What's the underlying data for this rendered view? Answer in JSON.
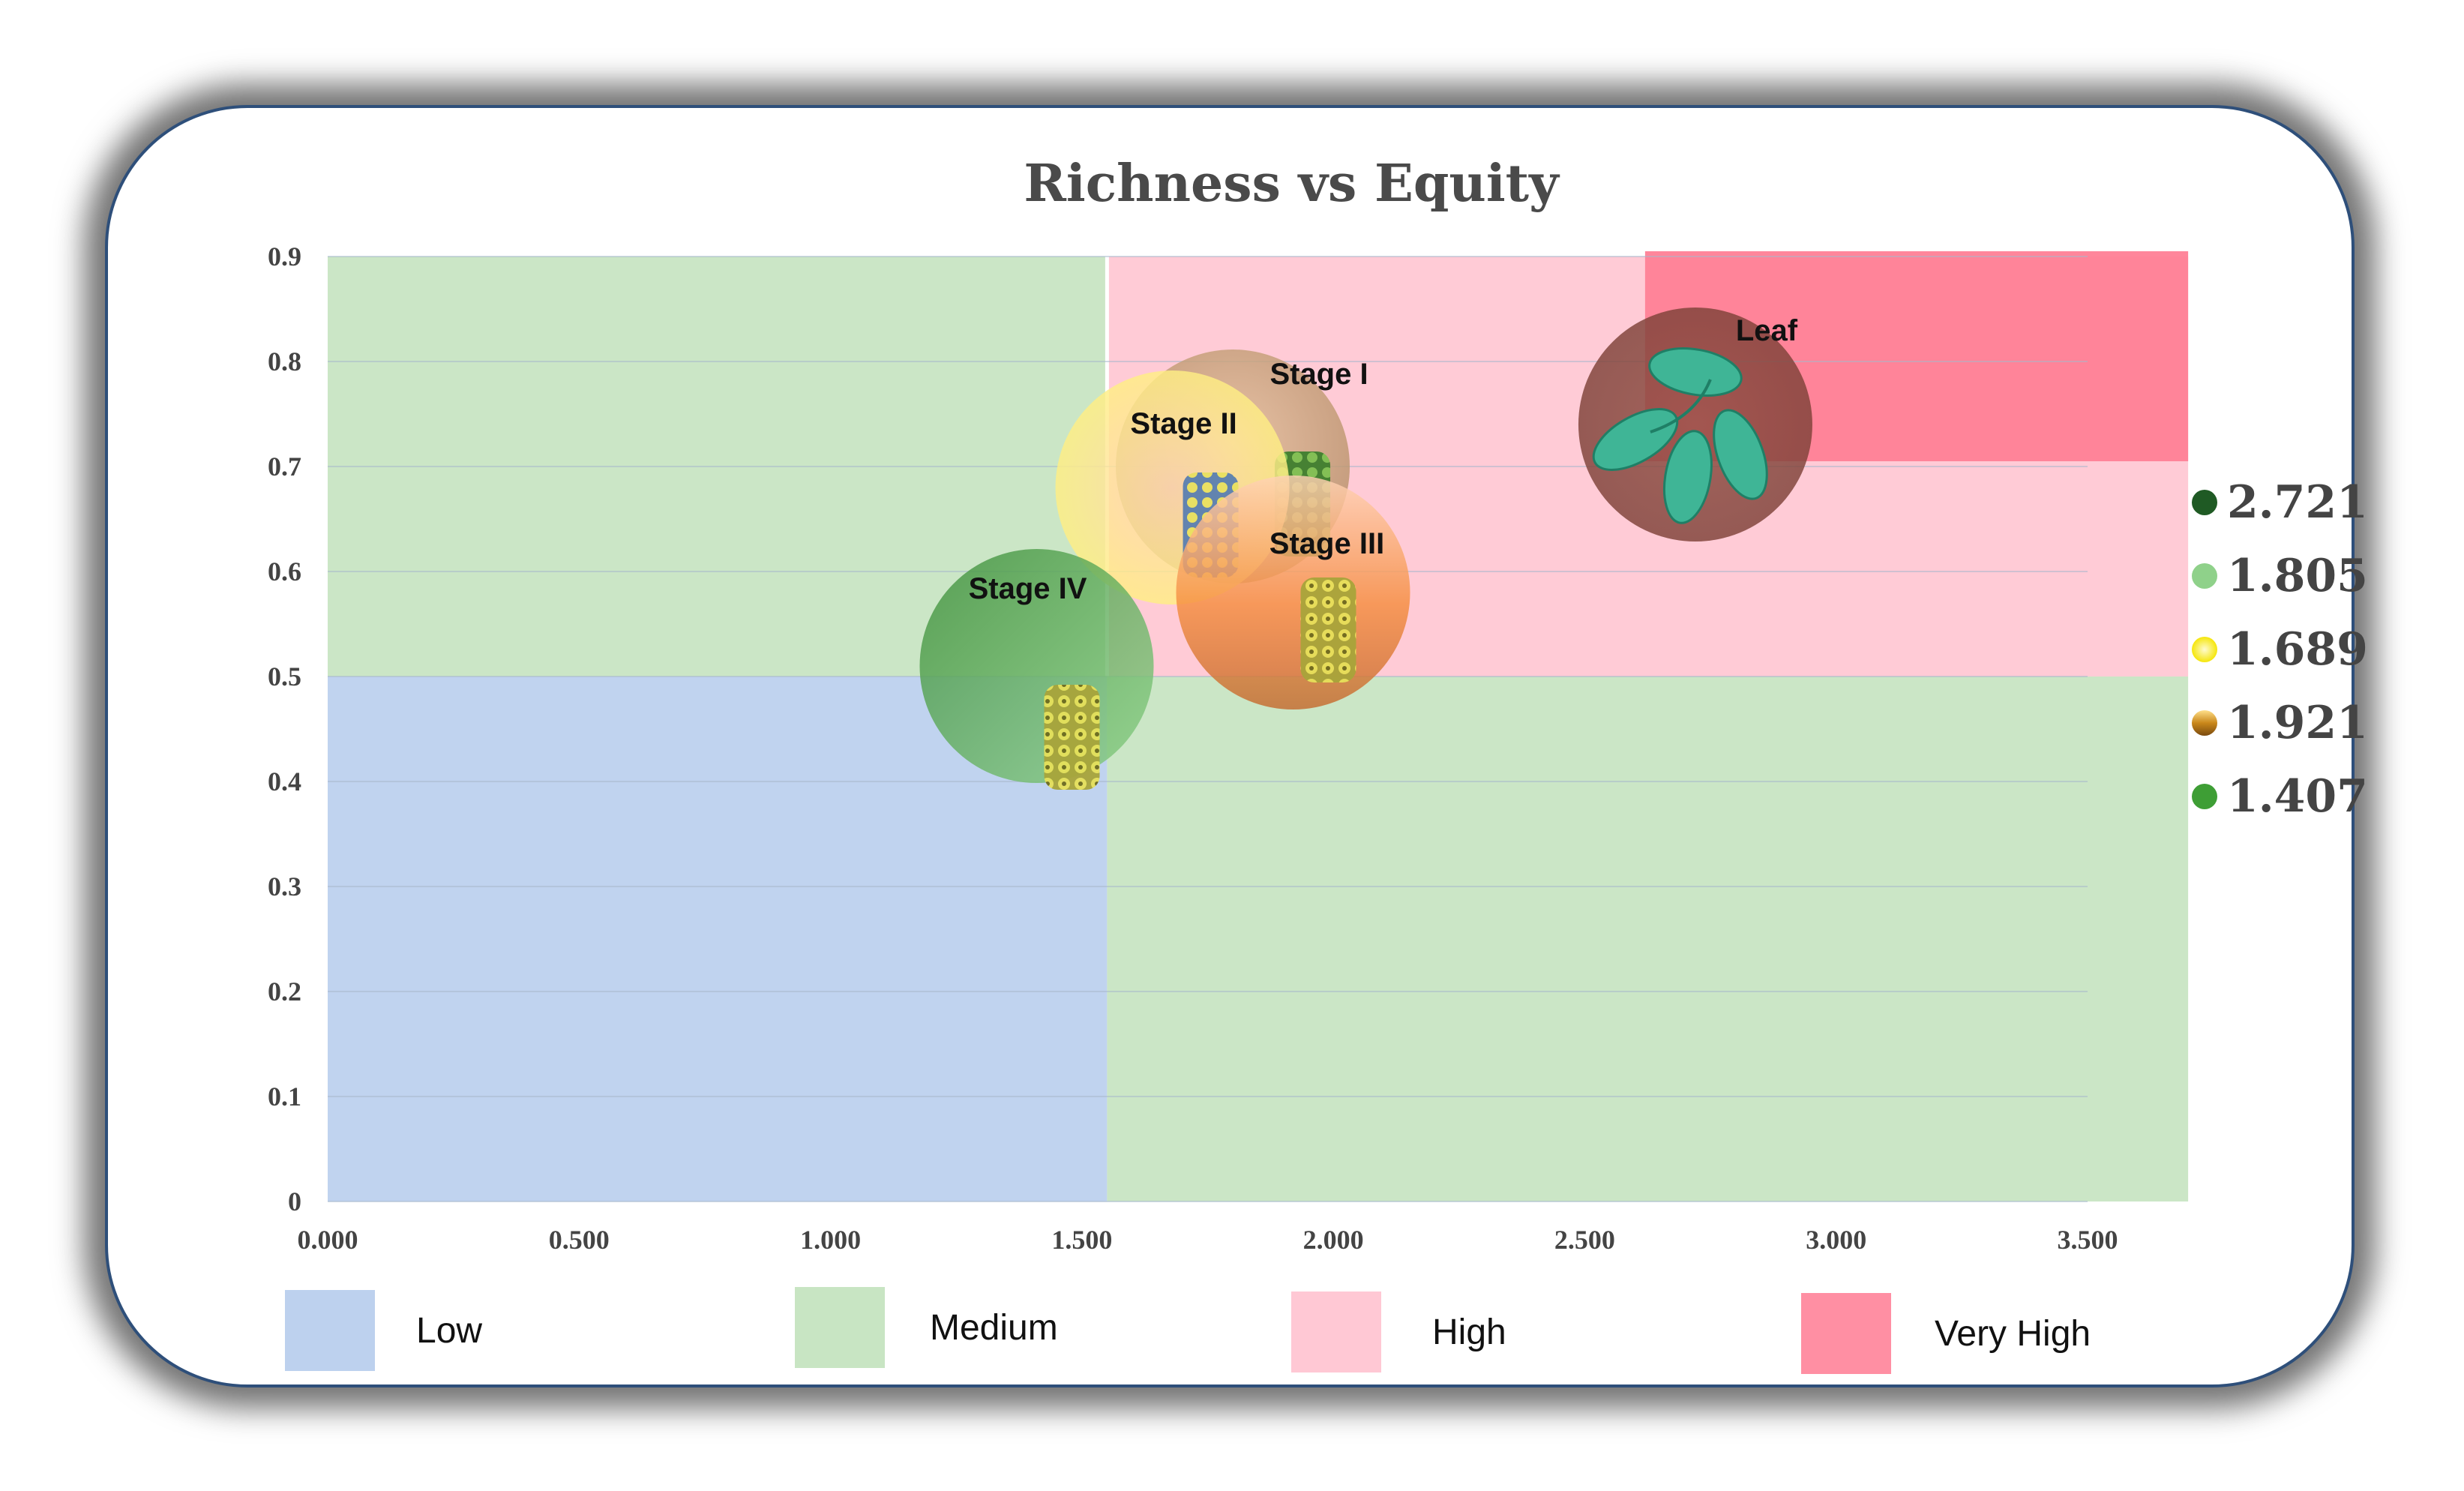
{
  "chart_data": {
    "type": "scatter",
    "title": "Richness vs Equity",
    "xlabel": "",
    "ylabel": "",
    "xlim": [
      0,
      3.5
    ],
    "ylim": [
      0,
      0.9
    ],
    "x_ticks": [
      "0.000",
      "0.500",
      "1.000",
      "1.500",
      "2.000",
      "2.500",
      "3.000",
      "3.500"
    ],
    "y_ticks": [
      "0",
      "0.1",
      "0.2",
      "0.3",
      "0.4",
      "0.5",
      "0.6",
      "0.7",
      "0.8",
      "0.9"
    ],
    "grid": "horizontal",
    "zones": [
      {
        "name": "Low",
        "color": "#bdd1ee",
        "x": [
          0,
          1.55
        ],
        "y": [
          0,
          0.5
        ]
      },
      {
        "name": "Medium",
        "color": "#c8e5c3",
        "x": [
          0,
          1.55
        ],
        "y": [
          0.5,
          0.9
        ]
      },
      {
        "name": "Medium",
        "color": "#c8e5c3",
        "x": [
          1.55,
          3.7
        ],
        "y": [
          0,
          0.5
        ]
      },
      {
        "name": "High",
        "color": "#ffc8d4",
        "x": [
          1.55,
          3.7
        ],
        "y": [
          0.5,
          0.9
        ]
      },
      {
        "name": "Very High",
        "color": "#ff7f96",
        "x": [
          2.62,
          3.7
        ],
        "y": [
          0.705,
          0.905
        ]
      }
    ],
    "points": [
      {
        "label": "Stage I",
        "x": 1.8,
        "y": 0.7,
        "value": "1.805",
        "color": "#c9a67f"
      },
      {
        "label": "Stage II",
        "x": 1.68,
        "y": 0.68,
        "value": "1.689",
        "color": "#fff089"
      },
      {
        "label": "Stage III",
        "x": 1.92,
        "y": 0.58,
        "value": "1.921",
        "color": "#f7a56a"
      },
      {
        "label": "Stage IV",
        "x": 1.41,
        "y": 0.51,
        "value": "1.407",
        "color": "#4f9f4c"
      },
      {
        "label": "Leaf",
        "x": 2.72,
        "y": 0.74,
        "value": "2.721",
        "color": "#8b4a3f"
      }
    ],
    "bubble_legend": [
      {
        "value": "2.721",
        "color": "#1f5a24"
      },
      {
        "value": "1.805",
        "color": "#8fd18a"
      },
      {
        "value": "1.689",
        "color": "#fff24a"
      },
      {
        "value": "1.921",
        "color": "#d79a2a"
      },
      {
        "value": "1.407",
        "color": "#3e9e35"
      }
    ],
    "legend": [
      {
        "label": "Low",
        "color": "#bdd1ee"
      },
      {
        "label": "Medium",
        "color": "#c8e5c3"
      },
      {
        "label": "High",
        "color": "#ffc8d4"
      },
      {
        "label": "Very High",
        "color": "#ff8fa3"
      }
    ],
    "legend_position": "bottom"
  }
}
